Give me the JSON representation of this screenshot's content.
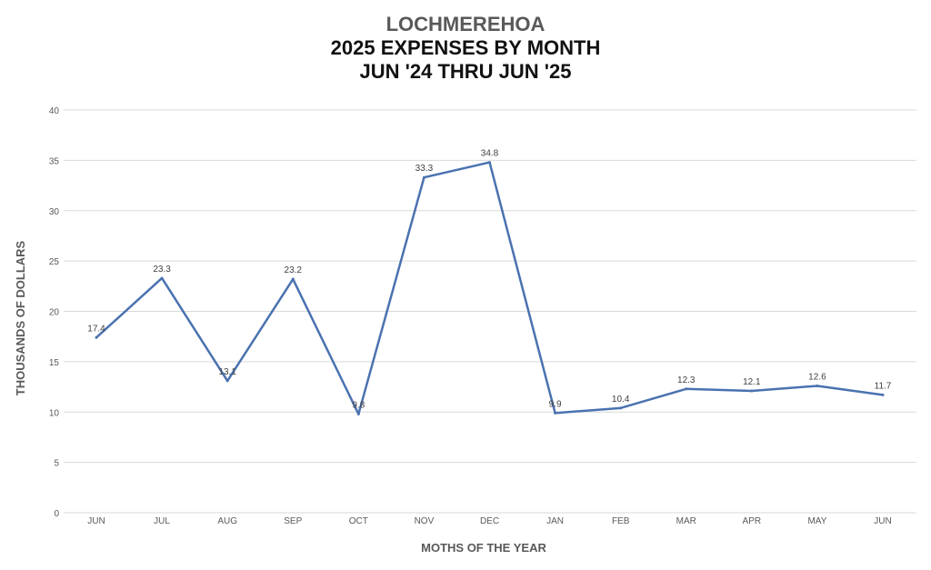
{
  "chart_data": {
    "type": "line",
    "title": "LOCHMEREHOA",
    "subtitle": "2025 EXPENSES BY MONTH",
    "subtitle2": "JUN '24 THRU JUN '25",
    "xlabel": "MOTHS OF THE YEAR",
    "ylabel": "THOUSANDS OF DOLLARS",
    "categories": [
      "JUN",
      "JUL",
      "AUG",
      "SEP",
      "OCT",
      "NOV",
      "DEC",
      "JAN",
      "FEB",
      "MAR",
      "APR",
      "MAY",
      "JUN"
    ],
    "values": [
      17.4,
      23.3,
      13.1,
      23.2,
      9.8,
      33.3,
      34.8,
      9.9,
      10.4,
      12.3,
      12.1,
      12.6,
      11.7
    ],
    "ylim": [
      0,
      40
    ],
    "yticks": [
      0,
      5,
      10,
      15,
      20,
      25,
      30,
      35,
      40
    ],
    "grid": true,
    "legend": "none",
    "line_color": "#4a72b0",
    "grid_color": "#d9d9d9"
  }
}
